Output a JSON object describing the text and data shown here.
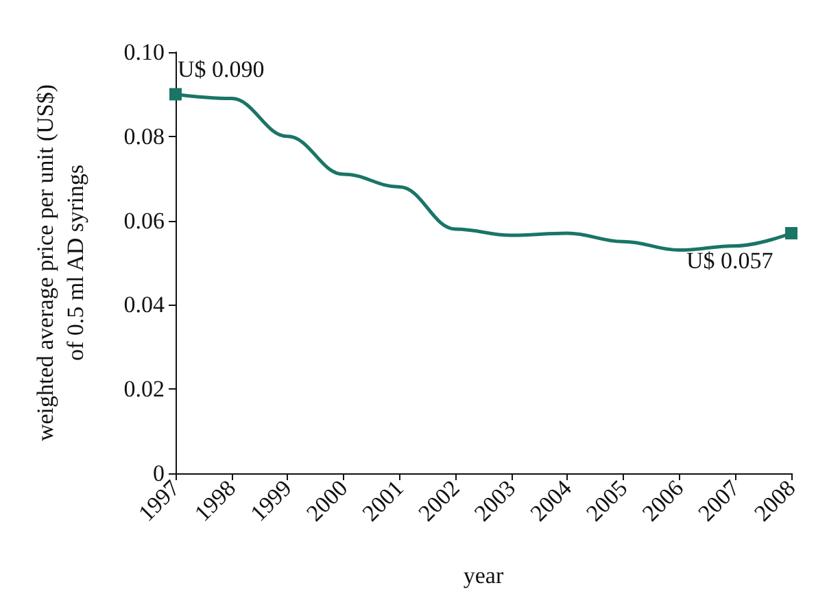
{
  "chart_data": {
    "type": "line",
    "xlabel": "year",
    "ylabel": "weighted average price per unit (US$)\nof 0.5 ml AD syrings",
    "categories": [
      "1997",
      "1998",
      "1999",
      "2000",
      "2001",
      "2002",
      "2003",
      "2004",
      "2005",
      "2006",
      "2007",
      "2008"
    ],
    "series": [
      {
        "color": "#1a7566",
        "values": [
          0.09,
          0.089,
          0.08,
          0.071,
          0.068,
          0.058,
          0.0565,
          0.057,
          0.055,
          0.053,
          0.054,
          0.057
        ],
        "value_labels": [
          "U$ 0.090",
          null,
          null,
          null,
          null,
          null,
          null,
          null,
          null,
          null,
          null,
          "U$ 0.057"
        ]
      }
    ],
    "ylim": [
      0,
      0.1
    ],
    "yticks": [
      {
        "value": 0,
        "label": "0"
      },
      0.02,
      0.04,
      0.06,
      0.08,
      {
        "value": 0.1,
        "label": "0.10"
      }
    ],
    "grid": false,
    "line_style": "solid"
  }
}
